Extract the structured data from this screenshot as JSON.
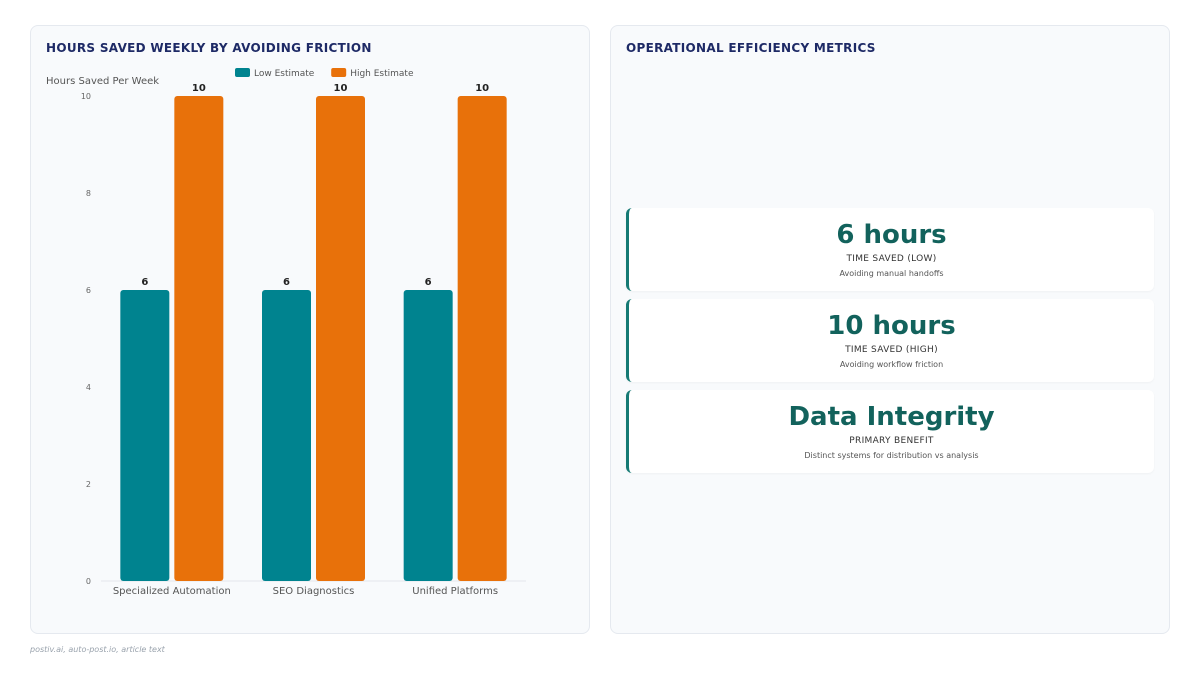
{
  "left_panel": {
    "title": "HOURS SAVED WEEKLY BY AVOIDING FRICTION"
  },
  "right_panel": {
    "title": "OPERATIONAL EFFICIENCY METRICS",
    "metrics": [
      {
        "value": "6 hours",
        "label": "TIME SAVED (LOW)",
        "description": "Avoiding manual handoffs"
      },
      {
        "value": "10 hours",
        "label": "TIME SAVED (HIGH)",
        "description": "Avoiding workflow friction"
      },
      {
        "value": "Data Integrity",
        "label": "PRIMARY BENEFIT",
        "description": "Distinct systems for distribution vs analysis"
      }
    ]
  },
  "source": "postiv.ai, auto-post.io, article text",
  "colors": {
    "low": "#00838f",
    "high": "#e8710a",
    "accent": "#157a74",
    "title": "#1e2a66"
  },
  "chart_data": {
    "type": "bar",
    "categories": [
      "Specialized Automation",
      "SEO Diagnostics",
      "Unified Platforms"
    ],
    "series": [
      {
        "name": "Low Estimate",
        "values": [
          6,
          6,
          6
        ]
      },
      {
        "name": "High Estimate",
        "values": [
          10,
          10,
          10
        ]
      }
    ],
    "ylabel": "Hours Saved Per Week",
    "ylim": [
      0,
      10
    ],
    "yticks": [
      0,
      2,
      4,
      6,
      8,
      10
    ],
    "legend": "top-center",
    "data_labels": true
  }
}
